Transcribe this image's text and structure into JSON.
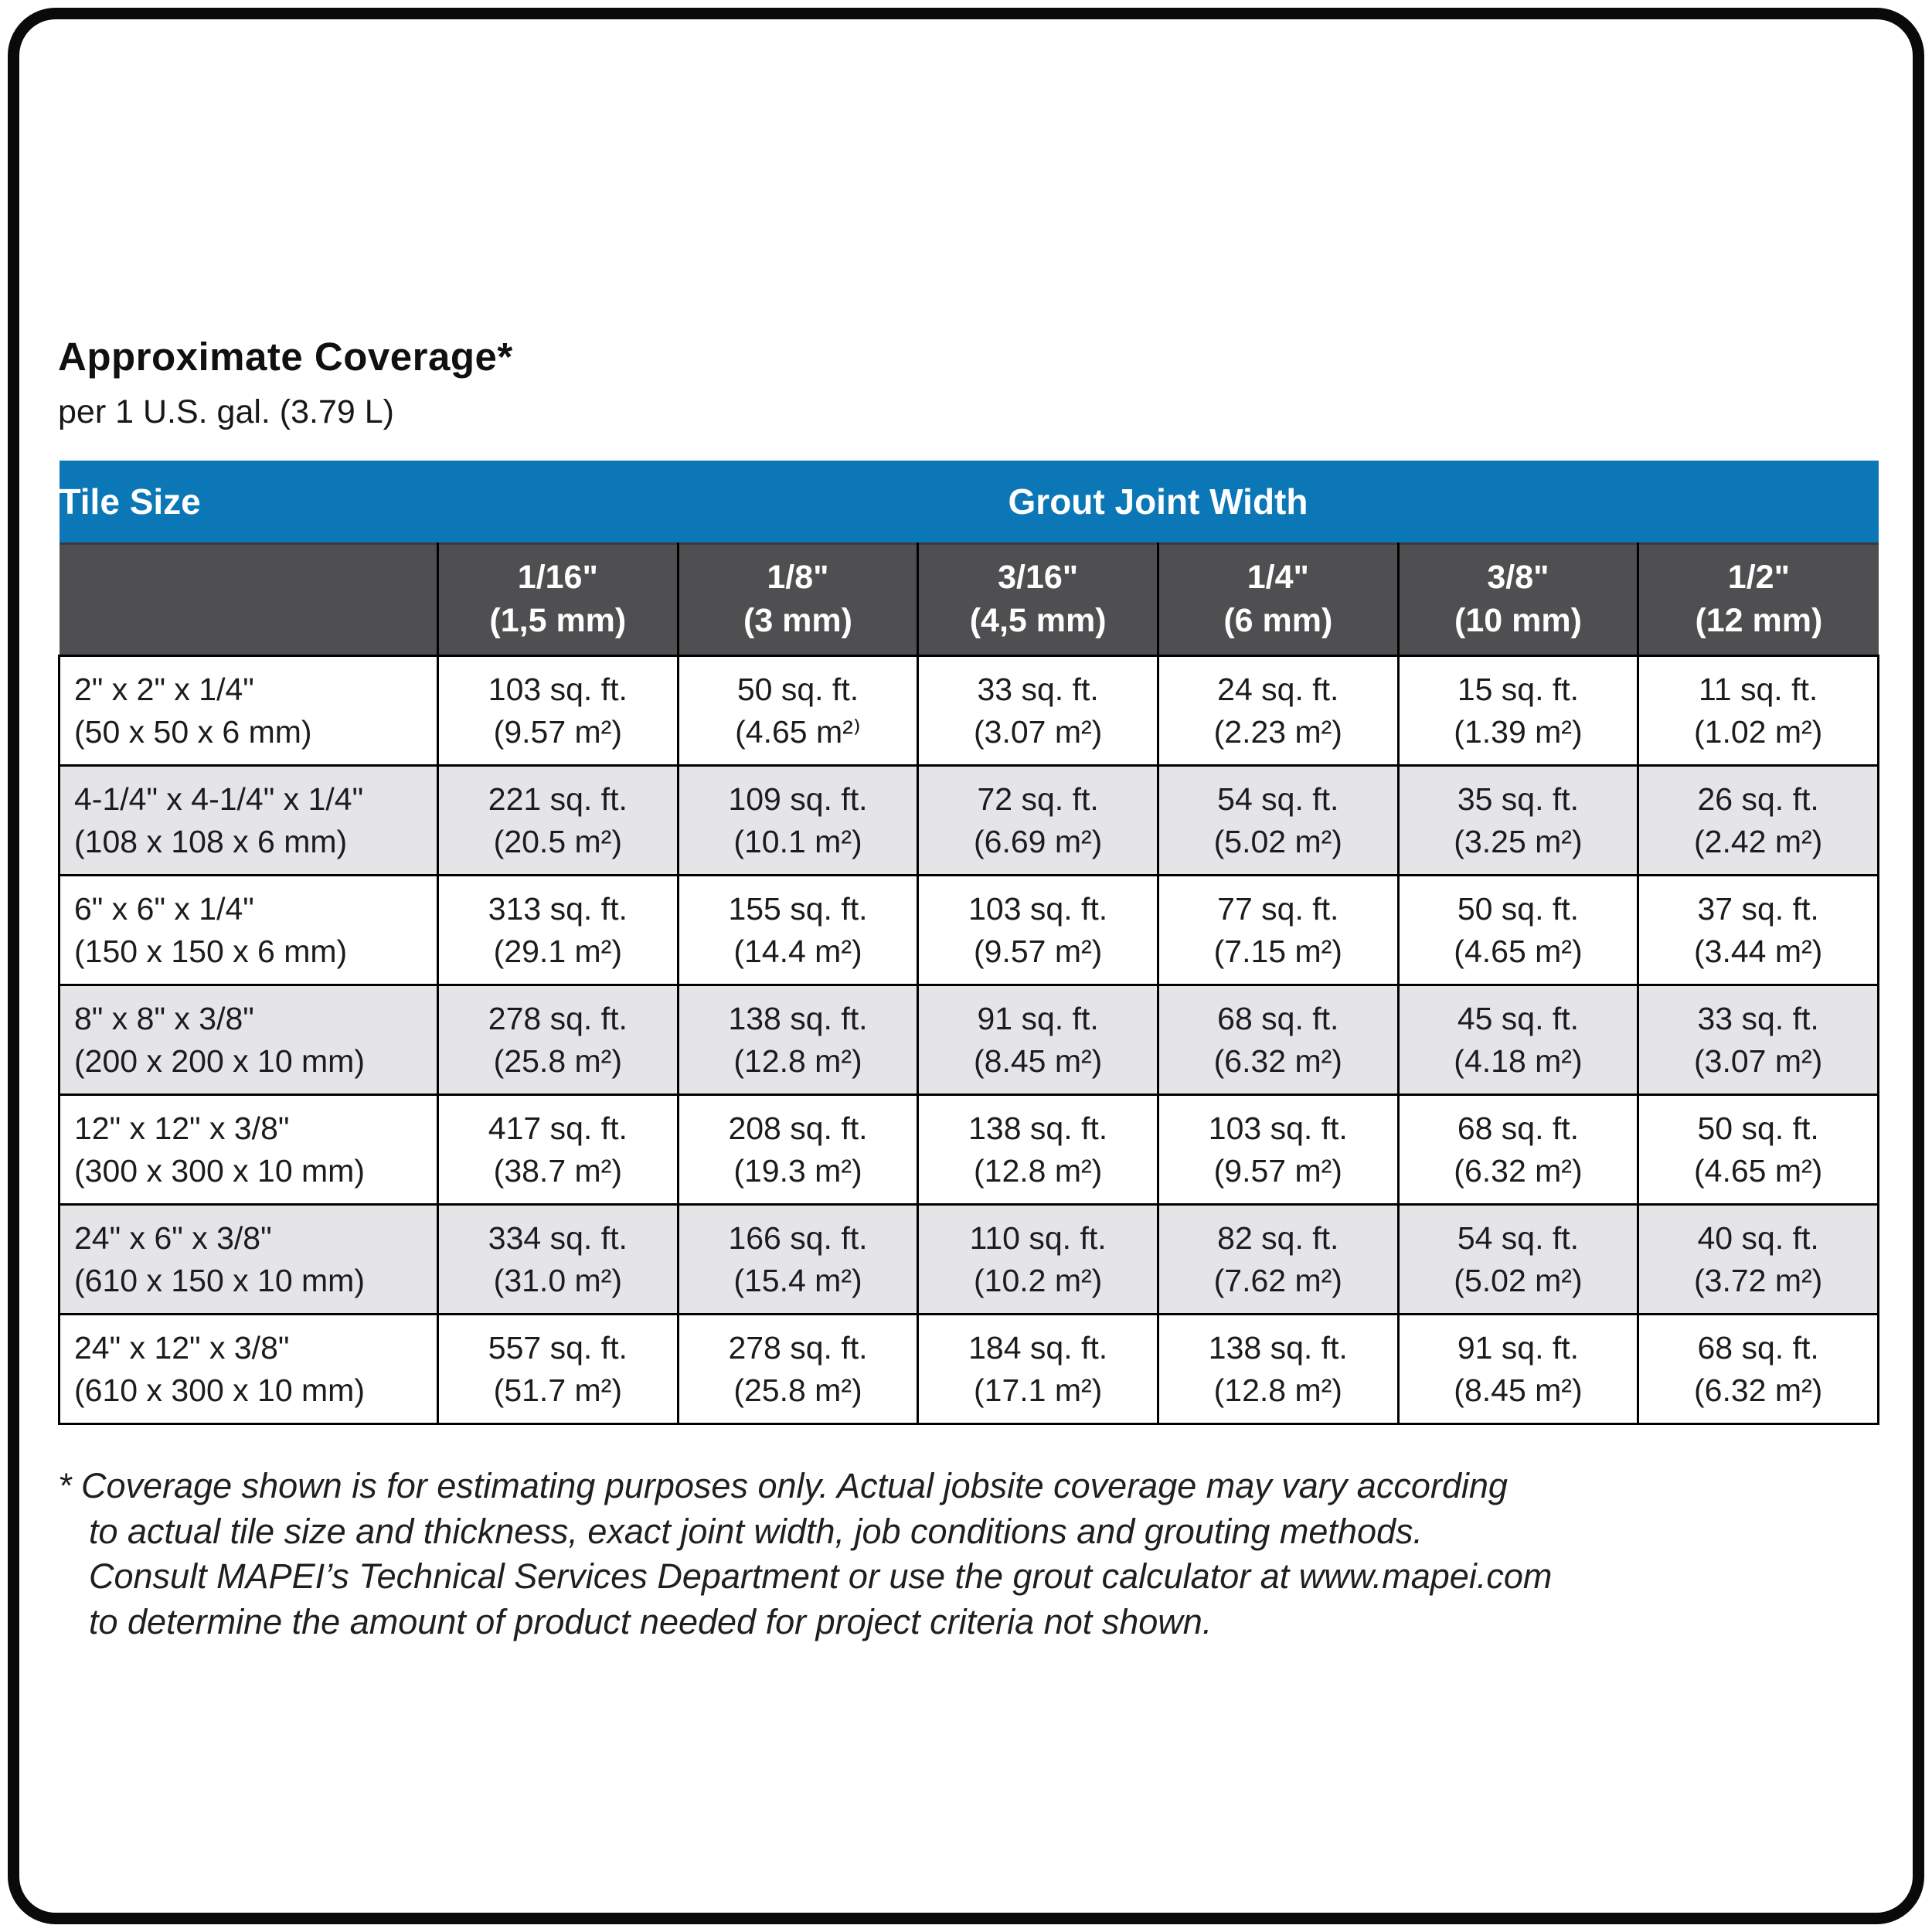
{
  "page": {
    "title": "Approximate Coverage*",
    "subtitle": "per 1 U.S. gal. (3.79 L)"
  },
  "colors": {
    "header_blue": "#0b77b7",
    "header_gray": "#4f4f51",
    "row_alt": "#e5e5e7",
    "border_black": "#000000"
  },
  "table": {
    "corner_label": "Tile Size",
    "group_header": "Grout Joint Width",
    "columns": [
      {
        "fraction": "1/16\"",
        "metric": "(1,5 mm)"
      },
      {
        "fraction": "1/8\"",
        "metric": "(3 mm)"
      },
      {
        "fraction": "3/16\"",
        "metric": "(4,5 mm)"
      },
      {
        "fraction": "1/4\"",
        "metric": "(6 mm)"
      },
      {
        "fraction": "3/8\"",
        "metric": "(10 mm)"
      },
      {
        "fraction": "1/2\"",
        "metric": "(12 mm)"
      }
    ],
    "rows": [
      {
        "size": "2\" x 2\" x 1/4\"",
        "size_metric": "(50 x 50 x 6 mm)",
        "cells": [
          {
            "imperial": "103 sq. ft.",
            "metric": "(9.57 m²)"
          },
          {
            "imperial": "50 sq. ft.",
            "metric": "(4.65 m²⁾"
          },
          {
            "imperial": "33 sq. ft.",
            "metric": "(3.07 m²)"
          },
          {
            "imperial": "24 sq. ft.",
            "metric": "(2.23 m²)"
          },
          {
            "imperial": "15 sq. ft.",
            "metric": "(1.39 m²)"
          },
          {
            "imperial": "11 sq. ft.",
            "metric": "(1.02 m²)"
          }
        ]
      },
      {
        "size": "4-1/4\" x 4-1/4\" x 1/4\"",
        "size_metric": "(108 x 108 x 6 mm)",
        "cells": [
          {
            "imperial": "221 sq. ft.",
            "metric": "(20.5 m²)"
          },
          {
            "imperial": "109 sq. ft.",
            "metric": "(10.1 m²)"
          },
          {
            "imperial": "72 sq. ft.",
            "metric": "(6.69 m²)"
          },
          {
            "imperial": "54 sq. ft.",
            "metric": "(5.02 m²)"
          },
          {
            "imperial": "35 sq. ft.",
            "metric": "(3.25 m²)"
          },
          {
            "imperial": "26 sq. ft.",
            "metric": "(2.42 m²)"
          }
        ]
      },
      {
        "size": "6\" x 6\" x 1/4\"",
        "size_metric": "(150 x 150 x 6 mm)",
        "cells": [
          {
            "imperial": "313 sq. ft.",
            "metric": "(29.1 m²)"
          },
          {
            "imperial": "155 sq. ft.",
            "metric": "(14.4 m²)"
          },
          {
            "imperial": "103 sq. ft.",
            "metric": "(9.57 m²)"
          },
          {
            "imperial": "77 sq. ft.",
            "metric": "(7.15 m²)"
          },
          {
            "imperial": "50 sq. ft.",
            "metric": "(4.65 m²)"
          },
          {
            "imperial": "37 sq. ft.",
            "metric": "(3.44 m²)"
          }
        ]
      },
      {
        "size": "8\" x 8\" x 3/8\"",
        "size_metric": "(200 x 200 x 10 mm)",
        "cells": [
          {
            "imperial": "278 sq. ft.",
            "metric": "(25.8 m²)"
          },
          {
            "imperial": "138 sq. ft.",
            "metric": "(12.8 m²)"
          },
          {
            "imperial": "91 sq. ft.",
            "metric": "(8.45 m²)"
          },
          {
            "imperial": "68 sq. ft.",
            "metric": "(6.32 m²)"
          },
          {
            "imperial": "45 sq. ft.",
            "metric": "(4.18 m²)"
          },
          {
            "imperial": "33 sq. ft.",
            "metric": "(3.07 m²)"
          }
        ]
      },
      {
        "size": "12\" x 12\" x 3/8\"",
        "size_metric": "(300 x 300 x 10 mm)",
        "cells": [
          {
            "imperial": "417 sq. ft.",
            "metric": "(38.7 m²)"
          },
          {
            "imperial": "208 sq. ft.",
            "metric": "(19.3 m²)"
          },
          {
            "imperial": "138 sq. ft.",
            "metric": "(12.8 m²)"
          },
          {
            "imperial": "103 sq. ft.",
            "metric": "(9.57 m²)"
          },
          {
            "imperial": "68 sq. ft.",
            "metric": "(6.32 m²)"
          },
          {
            "imperial": "50 sq. ft.",
            "metric": "(4.65 m²)"
          }
        ]
      },
      {
        "size": "24\" x 6\" x 3/8\"",
        "size_metric": "(610 x 150 x 10 mm)",
        "cells": [
          {
            "imperial": "334 sq. ft.",
            "metric": "(31.0 m²)"
          },
          {
            "imperial": "166 sq. ft.",
            "metric": "(15.4 m²)"
          },
          {
            "imperial": "110 sq. ft.",
            "metric": "(10.2 m²)"
          },
          {
            "imperial": "82 sq. ft.",
            "metric": "(7.62 m²)"
          },
          {
            "imperial": "54 sq. ft.",
            "metric": "(5.02 m²)"
          },
          {
            "imperial": "40 sq. ft.",
            "metric": "(3.72 m²)"
          }
        ]
      },
      {
        "size": "24\" x 12\" x 3/8\"",
        "size_metric": "(610 x 300 x 10 mm)",
        "cells": [
          {
            "imperial": "557 sq. ft.",
            "metric": "(51.7 m²)"
          },
          {
            "imperial": "278 sq. ft.",
            "metric": "(25.8 m²)"
          },
          {
            "imperial": "184 sq. ft.",
            "metric": "(17.1 m²)"
          },
          {
            "imperial": "138 sq. ft.",
            "metric": "(12.8 m²)"
          },
          {
            "imperial": "91 sq. ft.",
            "metric": "(8.45 m²)"
          },
          {
            "imperial": "68 sq. ft.",
            "metric": "(6.32 m²)"
          }
        ]
      }
    ]
  },
  "footnote": {
    "lines": [
      "* Coverage shown is for estimating purposes only. Actual jobsite coverage may vary according",
      "to actual tile size and thickness, exact joint width, job conditions and grouting methods.",
      "Consult MAPEI’s Technical Services Department or use the grout calculator at www.mapei.com",
      "to determine the amount of product needed for project criteria not shown."
    ]
  }
}
